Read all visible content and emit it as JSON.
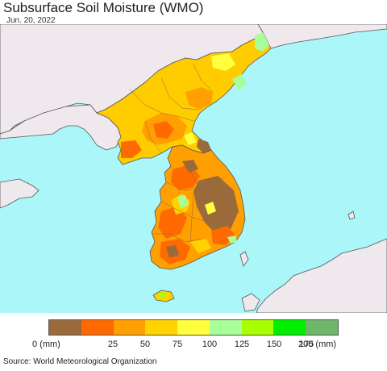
{
  "title": "Subsurface Soil Moisture (WMO)",
  "date": "Jun. 20, 2022",
  "source": "Source: World Meteorological Organization",
  "colors": {
    "sea": "#aaf6f9",
    "land_outside": "#efe9ee",
    "border": "#555555",
    "admin_line": "#8a6b3a"
  },
  "legend": {
    "labels": [
      "0 (mm)",
      "25",
      "50",
      "75",
      "100",
      "125",
      "150",
      "175",
      "200 (mm)"
    ],
    "colors": [
      "#9b6a3b",
      "#ff6a00",
      "#ff9f00",
      "#ffd200",
      "#ffff40",
      "#a8ff9a",
      "#a8ff00",
      "#00ee00",
      "#6fb56a"
    ]
  }
}
